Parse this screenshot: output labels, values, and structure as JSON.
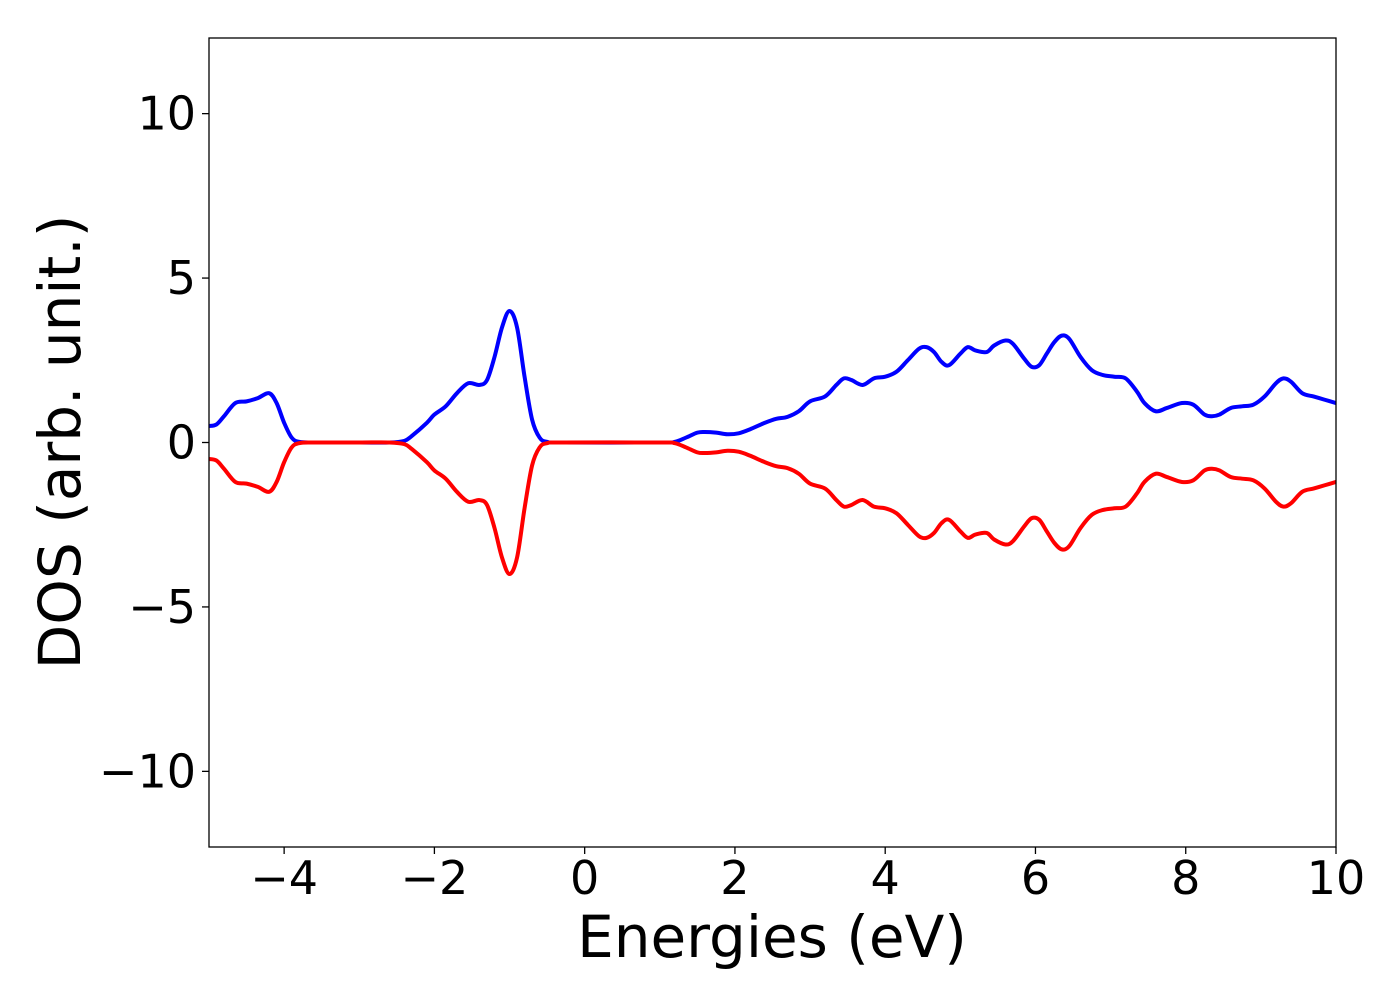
{
  "chart_data": {
    "type": "line",
    "title": "",
    "xlabel": "Energies (eV)",
    "ylabel": "DOS (arb. unit.)",
    "xlim": [
      -5,
      10
    ],
    "ylim": [
      -12.3,
      12.3
    ],
    "xticks": [
      -4,
      -2,
      0,
      2,
      4,
      6,
      8,
      10
    ],
    "xtick_labels": [
      "−4",
      "−2",
      "0",
      "2",
      "4",
      "6",
      "8",
      "10"
    ],
    "yticks": [
      10,
      5,
      0,
      -5,
      -10
    ],
    "ytick_labels": [
      "10",
      "5",
      "0",
      "−5",
      "−10"
    ],
    "grid": false,
    "legend": "none",
    "series": [
      {
        "color": "#0000ff",
        "points": [
          [
            -5.0,
            0.5
          ],
          [
            -4.9,
            0.55
          ],
          [
            -4.8,
            0.8
          ],
          [
            -4.65,
            1.2
          ],
          [
            -4.5,
            1.25
          ],
          [
            -4.35,
            1.35
          ],
          [
            -4.2,
            1.5
          ],
          [
            -4.1,
            1.2
          ],
          [
            -4.0,
            0.6
          ],
          [
            -3.9,
            0.15
          ],
          [
            -3.8,
            0.02
          ],
          [
            -3.6,
            0.0
          ],
          [
            -3.0,
            0.0
          ],
          [
            -2.6,
            0.0
          ],
          [
            -2.4,
            0.05
          ],
          [
            -2.3,
            0.2
          ],
          [
            -2.1,
            0.6
          ],
          [
            -2.0,
            0.85
          ],
          [
            -1.85,
            1.1
          ],
          [
            -1.7,
            1.5
          ],
          [
            -1.55,
            1.8
          ],
          [
            -1.4,
            1.75
          ],
          [
            -1.3,
            1.9
          ],
          [
            -1.2,
            2.6
          ],
          [
            -1.1,
            3.5
          ],
          [
            -1.0,
            4.0
          ],
          [
            -0.9,
            3.5
          ],
          [
            -0.8,
            2.0
          ],
          [
            -0.7,
            0.7
          ],
          [
            -0.6,
            0.15
          ],
          [
            -0.5,
            0.02
          ],
          [
            -0.3,
            0.0
          ],
          [
            1.0,
            0.0
          ],
          [
            1.2,
            0.02
          ],
          [
            1.35,
            0.15
          ],
          [
            1.5,
            0.3
          ],
          [
            1.6,
            0.32
          ],
          [
            1.75,
            0.3
          ],
          [
            1.9,
            0.25
          ],
          [
            2.05,
            0.28
          ],
          [
            2.2,
            0.4
          ],
          [
            2.4,
            0.6
          ],
          [
            2.55,
            0.72
          ],
          [
            2.7,
            0.78
          ],
          [
            2.85,
            0.95
          ],
          [
            3.0,
            1.25
          ],
          [
            3.2,
            1.4
          ],
          [
            3.35,
            1.75
          ],
          [
            3.45,
            1.95
          ],
          [
            3.55,
            1.9
          ],
          [
            3.7,
            1.75
          ],
          [
            3.85,
            1.95
          ],
          [
            4.0,
            2.0
          ],
          [
            4.15,
            2.15
          ],
          [
            4.3,
            2.5
          ],
          [
            4.45,
            2.85
          ],
          [
            4.55,
            2.9
          ],
          [
            4.65,
            2.75
          ],
          [
            4.75,
            2.45
          ],
          [
            4.85,
            2.35
          ],
          [
            5.0,
            2.7
          ],
          [
            5.1,
            2.9
          ],
          [
            5.2,
            2.8
          ],
          [
            5.35,
            2.75
          ],
          [
            5.45,
            2.95
          ],
          [
            5.6,
            3.1
          ],
          [
            5.7,
            3.0
          ],
          [
            5.85,
            2.55
          ],
          [
            5.95,
            2.3
          ],
          [
            6.05,
            2.35
          ],
          [
            6.15,
            2.7
          ],
          [
            6.25,
            3.05
          ],
          [
            6.35,
            3.25
          ],
          [
            6.45,
            3.15
          ],
          [
            6.6,
            2.6
          ],
          [
            6.75,
            2.2
          ],
          [
            6.9,
            2.05
          ],
          [
            7.05,
            2.0
          ],
          [
            7.2,
            1.95
          ],
          [
            7.35,
            1.55
          ],
          [
            7.45,
            1.2
          ],
          [
            7.6,
            0.95
          ],
          [
            7.75,
            1.05
          ],
          [
            7.95,
            1.2
          ],
          [
            8.1,
            1.15
          ],
          [
            8.25,
            0.85
          ],
          [
            8.35,
            0.8
          ],
          [
            8.45,
            0.85
          ],
          [
            8.6,
            1.05
          ],
          [
            8.75,
            1.1
          ],
          [
            8.9,
            1.15
          ],
          [
            9.05,
            1.4
          ],
          [
            9.2,
            1.8
          ],
          [
            9.3,
            1.95
          ],
          [
            9.4,
            1.85
          ],
          [
            9.55,
            1.5
          ],
          [
            9.7,
            1.4
          ],
          [
            9.85,
            1.3
          ],
          [
            10.0,
            1.2
          ]
        ]
      },
      {
        "color": "#ff0000",
        "points": [
          [
            -5.0,
            -0.5
          ],
          [
            -4.9,
            -0.55
          ],
          [
            -4.8,
            -0.8
          ],
          [
            -4.65,
            -1.2
          ],
          [
            -4.5,
            -1.25
          ],
          [
            -4.35,
            -1.35
          ],
          [
            -4.2,
            -1.5
          ],
          [
            -4.1,
            -1.2
          ],
          [
            -4.0,
            -0.6
          ],
          [
            -3.9,
            -0.15
          ],
          [
            -3.8,
            -0.02
          ],
          [
            -3.6,
            0.0
          ],
          [
            -3.0,
            0.0
          ],
          [
            -2.6,
            0.0
          ],
          [
            -2.4,
            -0.05
          ],
          [
            -2.3,
            -0.2
          ],
          [
            -2.1,
            -0.6
          ],
          [
            -2.0,
            -0.85
          ],
          [
            -1.85,
            -1.1
          ],
          [
            -1.7,
            -1.5
          ],
          [
            -1.55,
            -1.8
          ],
          [
            -1.4,
            -1.75
          ],
          [
            -1.3,
            -1.9
          ],
          [
            -1.2,
            -2.6
          ],
          [
            -1.1,
            -3.5
          ],
          [
            -1.0,
            -4.0
          ],
          [
            -0.9,
            -3.5
          ],
          [
            -0.8,
            -2.0
          ],
          [
            -0.7,
            -0.7
          ],
          [
            -0.6,
            -0.15
          ],
          [
            -0.5,
            -0.02
          ],
          [
            -0.3,
            0.0
          ],
          [
            1.0,
            0.0
          ],
          [
            1.2,
            -0.02
          ],
          [
            1.35,
            -0.15
          ],
          [
            1.5,
            -0.3
          ],
          [
            1.6,
            -0.32
          ],
          [
            1.75,
            -0.3
          ],
          [
            1.9,
            -0.25
          ],
          [
            2.05,
            -0.28
          ],
          [
            2.2,
            -0.4
          ],
          [
            2.4,
            -0.6
          ],
          [
            2.55,
            -0.72
          ],
          [
            2.7,
            -0.78
          ],
          [
            2.85,
            -0.95
          ],
          [
            3.0,
            -1.25
          ],
          [
            3.2,
            -1.4
          ],
          [
            3.35,
            -1.75
          ],
          [
            3.45,
            -1.95
          ],
          [
            3.55,
            -1.9
          ],
          [
            3.7,
            -1.75
          ],
          [
            3.85,
            -1.95
          ],
          [
            4.0,
            -2.0
          ],
          [
            4.15,
            -2.15
          ],
          [
            4.3,
            -2.5
          ],
          [
            4.45,
            -2.85
          ],
          [
            4.55,
            -2.9
          ],
          [
            4.65,
            -2.75
          ],
          [
            4.75,
            -2.45
          ],
          [
            4.85,
            -2.35
          ],
          [
            5.0,
            -2.7
          ],
          [
            5.1,
            -2.9
          ],
          [
            5.2,
            -2.8
          ],
          [
            5.35,
            -2.75
          ],
          [
            5.45,
            -2.95
          ],
          [
            5.6,
            -3.1
          ],
          [
            5.7,
            -3.0
          ],
          [
            5.85,
            -2.55
          ],
          [
            5.95,
            -2.3
          ],
          [
            6.05,
            -2.35
          ],
          [
            6.15,
            -2.7
          ],
          [
            6.25,
            -3.05
          ],
          [
            6.35,
            -3.25
          ],
          [
            6.45,
            -3.15
          ],
          [
            6.6,
            -2.6
          ],
          [
            6.75,
            -2.2
          ],
          [
            6.9,
            -2.05
          ],
          [
            7.05,
            -2.0
          ],
          [
            7.2,
            -1.95
          ],
          [
            7.35,
            -1.55
          ],
          [
            7.45,
            -1.2
          ],
          [
            7.6,
            -0.95
          ],
          [
            7.75,
            -1.05
          ],
          [
            7.95,
            -1.2
          ],
          [
            8.1,
            -1.15
          ],
          [
            8.25,
            -0.85
          ],
          [
            8.35,
            -0.8
          ],
          [
            8.45,
            -0.85
          ],
          [
            8.6,
            -1.05
          ],
          [
            8.75,
            -1.1
          ],
          [
            8.9,
            -1.15
          ],
          [
            9.05,
            -1.4
          ],
          [
            9.2,
            -1.8
          ],
          [
            9.3,
            -1.95
          ],
          [
            9.4,
            -1.85
          ],
          [
            9.55,
            -1.5
          ],
          [
            9.7,
            -1.4
          ],
          [
            9.85,
            -1.3
          ],
          [
            10.0,
            -1.2
          ]
        ]
      }
    ]
  }
}
